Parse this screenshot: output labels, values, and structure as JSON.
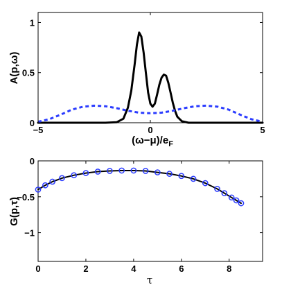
{
  "chart_data": [
    {
      "type": "line",
      "ylabel": "A(p,ω)",
      "xlabel_main": "(ω−μ)/e",
      "xlabel_sub": "F",
      "xlim": [
        -5,
        5
      ],
      "ylim": [
        0,
        1.1
      ],
      "xticks": [
        -5,
        0,
        5
      ],
      "xtick_labels": [
        "−5",
        "0",
        "5"
      ],
      "yticks": [
        0,
        0.5,
        1
      ],
      "ytick_labels": [
        "0",
        "0.5",
        "1"
      ],
      "grid": false,
      "series": [
        {
          "style": "solid",
          "color": "#000000",
          "x": [
            -5.0,
            -4.0,
            -3.0,
            -2.0,
            -1.5,
            -1.2,
            -1.0,
            -0.85,
            -0.7,
            -0.6,
            -0.5,
            -0.4,
            -0.3,
            -0.2,
            -0.1,
            0.0,
            0.1,
            0.2,
            0.3,
            0.4,
            0.5,
            0.6,
            0.7,
            0.8,
            0.9,
            1.0,
            1.1,
            1.2,
            1.4,
            1.7,
            2.0,
            3.0,
            4.0,
            5.0
          ],
          "y": [
            0.0,
            0.0,
            0.0,
            0.0,
            0.005,
            0.04,
            0.15,
            0.32,
            0.58,
            0.78,
            0.9,
            0.86,
            0.7,
            0.5,
            0.3,
            0.19,
            0.16,
            0.19,
            0.28,
            0.38,
            0.45,
            0.48,
            0.47,
            0.4,
            0.3,
            0.2,
            0.12,
            0.06,
            0.015,
            0.0,
            0.0,
            0.0,
            0.0,
            0.0
          ]
        },
        {
          "style": "dashed",
          "color": "#2b3cff",
          "x": [
            -5.0,
            -4.5,
            -4.0,
            -3.5,
            -3.0,
            -2.5,
            -2.0,
            -1.5,
            -1.0,
            -0.5,
            0.0,
            0.5,
            1.0,
            1.5,
            2.0,
            2.5,
            3.0,
            3.5,
            4.0,
            4.5,
            5.0
          ],
          "y": [
            0.01,
            0.035,
            0.08,
            0.13,
            0.16,
            0.17,
            0.165,
            0.145,
            0.12,
            0.1,
            0.095,
            0.1,
            0.12,
            0.145,
            0.165,
            0.17,
            0.16,
            0.13,
            0.08,
            0.035,
            0.01
          ]
        }
      ]
    },
    {
      "type": "line",
      "ylabel": "G(p,τ)",
      "xlabel": "τ",
      "xlim": [
        0,
        9.4
      ],
      "ylim": [
        -1.4,
        0
      ],
      "xticks": [
        0,
        2,
        4,
        6,
        8
      ],
      "xtick_labels": [
        "0",
        "2",
        "4",
        "6",
        "8"
      ],
      "yticks": [
        0,
        -0.5,
        -1
      ],
      "ytick_labels": [
        "0",
        "−0.5",
        "−1"
      ],
      "grid": false,
      "series": [
        {
          "style": "solid",
          "color": "#000000",
          "x": [
            0.0,
            0.3,
            0.6,
            1.0,
            1.5,
            2.0,
            2.5,
            3.0,
            3.5,
            4.0,
            4.5,
            5.0,
            5.5,
            6.0,
            6.5,
            7.0,
            7.5,
            7.8,
            8.1,
            8.3,
            8.5
          ],
          "y": [
            -0.4,
            -0.34,
            -0.29,
            -0.24,
            -0.2,
            -0.17,
            -0.15,
            -0.14,
            -0.135,
            -0.135,
            -0.14,
            -0.16,
            -0.18,
            -0.21,
            -0.25,
            -0.31,
            -0.39,
            -0.45,
            -0.51,
            -0.55,
            -0.59
          ]
        },
        {
          "style": "markers",
          "marker": "circle",
          "color": "#2b3cff",
          "x": [
            0.0,
            0.3,
            0.6,
            1.0,
            1.5,
            2.0,
            2.5,
            3.0,
            3.5,
            4.0,
            4.5,
            5.0,
            5.5,
            6.0,
            6.5,
            7.0,
            7.5,
            7.8,
            8.1,
            8.3,
            8.5
          ],
          "y": [
            -0.4,
            -0.34,
            -0.29,
            -0.24,
            -0.2,
            -0.17,
            -0.15,
            -0.14,
            -0.135,
            -0.135,
            -0.14,
            -0.16,
            -0.18,
            -0.21,
            -0.25,
            -0.31,
            -0.39,
            -0.45,
            -0.51,
            -0.55,
            -0.59
          ]
        }
      ]
    }
  ]
}
